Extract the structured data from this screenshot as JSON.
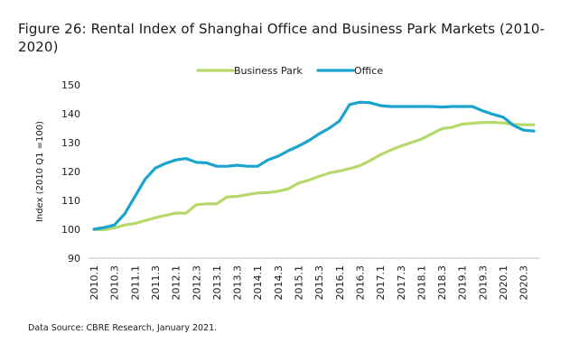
{
  "title": "Figure 26: Rental Index of Shanghai Office and Business Park Markets (2010-2020)",
  "source": "Data Source: CBRE Research, January 2021.",
  "chart_data": {
    "type": "line",
    "title": "Figure 26: Rental Index of Shanghai Office and Business Park Markets (2010-2020)",
    "xlabel": "",
    "ylabel": "Index (2010 Q1 =100)",
    "ylim": [
      90,
      150
    ],
    "yticks": [
      90,
      100,
      110,
      120,
      130,
      140,
      150
    ],
    "grid": false,
    "legend_position": "top-center",
    "x": [
      "2010.1",
      "2010.2",
      "2010.3",
      "2010.4",
      "2011.1",
      "2011.2",
      "2011.3",
      "2011.4",
      "2012.1",
      "2012.2",
      "2012.3",
      "2012.4",
      "2013.1",
      "2013.2",
      "2013.3",
      "2013.4",
      "2014.1",
      "2014.2",
      "2014.3",
      "2014.4",
      "2015.1",
      "2015.2",
      "2015.3",
      "2015.4",
      "2016.1",
      "2016.2",
      "2016.3",
      "2016.4",
      "2017.1",
      "2017.2",
      "2017.3",
      "2017.4",
      "2018.1",
      "2018.2",
      "2018.3",
      "2018.4",
      "2019.1",
      "2019.2",
      "2019.3",
      "2019.4",
      "2020.1",
      "2020.2",
      "2020.3",
      "2020.4"
    ],
    "xtick_labels": [
      "2010.1",
      "2010.3",
      "2011.1",
      "2011.3",
      "2012.1",
      "2012.3",
      "2013.1",
      "2013.3",
      "2014.1",
      "2014.3",
      "2015.1",
      "2015.3",
      "2016.1",
      "2016.3",
      "2017.1",
      "2017.3",
      "2018.1",
      "2018.3",
      "2019.1",
      "2019.3",
      "2020.1",
      "2020.3"
    ],
    "series": [
      {
        "name": "Business Park",
        "color": "#b5d96b",
        "values": [
          100,
          99.8,
          100.5,
          101.5,
          102,
          103,
          104,
          104.8,
          105.6,
          105.6,
          108.5,
          108.8,
          108.8,
          111.2,
          111.4,
          112.0,
          112.6,
          112.7,
          113.2,
          114,
          116,
          117,
          118.3,
          119.5,
          120.2,
          121,
          122,
          123.8,
          125.8,
          127.4,
          128.8,
          130,
          131.2,
          133,
          134.8,
          135.3,
          136.4,
          136.7,
          137,
          137,
          136.8,
          136.3,
          136.2,
          136.2
        ]
      },
      {
        "name": "Office",
        "color": "#1aa3cc",
        "values": [
          100,
          100.6,
          101.5,
          105.3,
          111.3,
          117.3,
          121.2,
          122.8,
          124,
          124.5,
          123.2,
          123,
          121.8,
          121.8,
          122.2,
          121.8,
          121.8,
          124,
          125.3,
          127.2,
          128.8,
          130.7,
          133,
          135,
          137.5,
          143.2,
          144,
          143.8,
          142.8,
          142.5,
          142.5,
          142.5,
          142.5,
          142.5,
          142.3,
          142.5,
          142.5,
          142.5,
          141,
          139.8,
          138.8,
          136,
          134.3,
          134
        ]
      }
    ]
  }
}
